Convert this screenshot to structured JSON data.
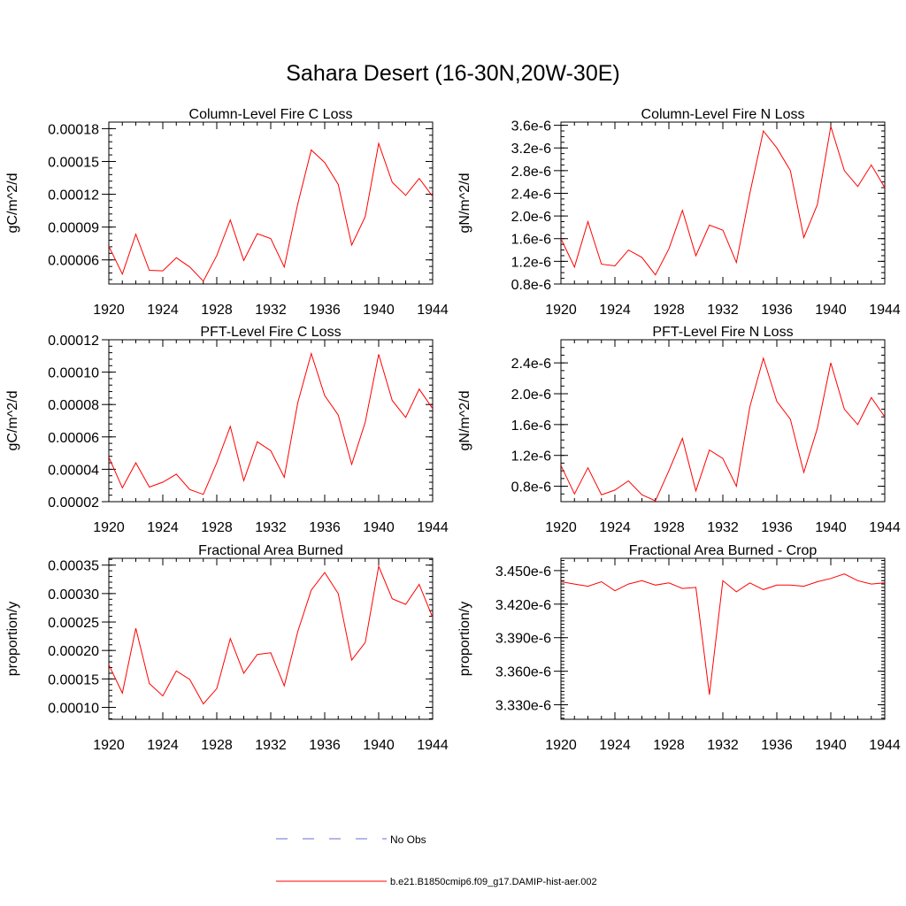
{
  "title": "Sahara Desert (16-30N,20W-30E)",
  "colors": {
    "model": "#ff0000",
    "obs": "#6b6bd6",
    "axis": "#000000"
  },
  "legend": {
    "obs_label": "No Obs",
    "model_label": "b.e21.B1850cmip6.f09_g17.DAMIP-hist-aer.002"
  },
  "chart_data": [
    {
      "type": "line",
      "title": "Column-Level Fire C Loss",
      "ylabel": "gC/m^2/d",
      "xlim": [
        1920,
        1944
      ],
      "ylim": [
        3.794e-05,
        0.000186
      ],
      "x_ticks": [
        1920,
        1924,
        1928,
        1932,
        1936,
        1940,
        1944
      ],
      "y_ticks": [
        6e-05,
        9e-05,
        0.00012,
        0.00015,
        0.00018
      ],
      "y_tick_labels": [
        "0.00006",
        "0.00009",
        "0.00012",
        "0.00015",
        "0.00018"
      ],
      "y_minor_step": 6e-06,
      "series": [
        {
          "x": [
            1920,
            1921,
            1922,
            1923,
            1924,
            1925,
            1926,
            1927,
            1928,
            1929,
            1930,
            1931,
            1932,
            1933,
            1934,
            1935,
            1936,
            1937,
            1938,
            1939,
            1940,
            1941,
            1942,
            1943,
            1944
          ],
          "values": [
            7.25e-05,
            4.7e-05,
            8.35e-05,
            5.05e-05,
            5e-05,
            6.2e-05,
            5.35e-05,
            4.05e-05,
            6.4e-05,
            9.65e-05,
            5.95e-05,
            8.4e-05,
            7.95e-05,
            5.35e-05,
            0.000111,
            0.0001605,
            0.000149,
            0.000129,
            7.35e-05,
            9.95e-05,
            0.0001665,
            0.000131,
            0.000119,
            0.0001345,
            0.000118
          ]
        }
      ]
    },
    {
      "type": "line",
      "title": "Column-Level Fire N Loss",
      "ylabel": "gN/m^2/d",
      "xlim": [
        1920,
        1944
      ],
      "ylim": [
        8e-07,
        3.656e-06
      ],
      "x_ticks": [
        1920,
        1924,
        1928,
        1932,
        1936,
        1940,
        1944
      ],
      "y_ticks": [
        8e-07,
        1.2e-06,
        1.6e-06,
        2e-06,
        2.4e-06,
        2.8e-06,
        3.2e-06,
        3.6e-06
      ],
      "y_tick_labels": [
        "0.8e-6",
        "1.2e-6",
        "1.6e-6",
        "2.0e-6",
        "2.4e-6",
        "2.8e-6",
        "3.2e-6",
        "3.6e-6"
      ],
      "y_minor_step": 1e-07,
      "series": [
        {
          "x": [
            1920,
            1921,
            1922,
            1923,
            1924,
            1925,
            1926,
            1927,
            1928,
            1929,
            1930,
            1931,
            1932,
            1933,
            1934,
            1935,
            1936,
            1937,
            1938,
            1939,
            1940,
            1941,
            1942,
            1943,
            1944
          ],
          "values": [
            1.6e-06,
            1.1e-06,
            1.9e-06,
            1.15e-06,
            1.12e-06,
            1.4e-06,
            1.27e-06,
            9.6e-07,
            1.42e-06,
            2.1e-06,
            1.3e-06,
            1.84e-06,
            1.75e-06,
            1.18e-06,
            2.4e-06,
            3.5e-06,
            3.2e-06,
            2.8e-06,
            1.62e-06,
            2.2e-06,
            3.58e-06,
            2.8e-06,
            2.52e-06,
            2.9e-06,
            2.5e-06
          ]
        }
      ]
    },
    {
      "type": "line",
      "title": "PFT-Level Fire C Loss",
      "ylabel": "gC/m^2/d",
      "xlim": [
        1920,
        1944
      ],
      "ylim": [
        2e-05,
        0.00012
      ],
      "x_ticks": [
        1920,
        1924,
        1928,
        1932,
        1936,
        1940,
        1944
      ],
      "y_ticks": [
        2e-05,
        4e-05,
        6e-05,
        8e-05,
        0.0001,
        0.00012
      ],
      "y_tick_labels": [
        "0.00002",
        "0.00004",
        "0.00006",
        "0.00008",
        "0.00010",
        "0.00012"
      ],
      "y_minor_step": 4e-06,
      "series": [
        {
          "x": [
            1920,
            1921,
            1922,
            1923,
            1924,
            1925,
            1926,
            1927,
            1928,
            1929,
            1930,
            1931,
            1932,
            1933,
            1934,
            1935,
            1936,
            1937,
            1938,
            1939,
            1940,
            1941,
            1942,
            1943,
            1944
          ],
          "values": [
            4.75e-05,
            2.85e-05,
            4.4e-05,
            2.9e-05,
            3.2e-05,
            3.7e-05,
            2.75e-05,
            2.45e-05,
            4.4e-05,
            6.65e-05,
            3.3e-05,
            5.7e-05,
            5.15e-05,
            3.5e-05,
            8.1e-05,
            0.0001115,
            8.55e-05,
            7.35e-05,
            4.3e-05,
            6.9e-05,
            0.000111,
            8.25e-05,
            7.2e-05,
            8.95e-05,
            7.75e-05
          ]
        }
      ]
    },
    {
      "type": "line",
      "title": "PFT-Level Fire N Loss",
      "ylabel": "gN/m^2/d",
      "xlim": [
        1920,
        1944
      ],
      "ylim": [
        6e-07,
        2.7e-06
      ],
      "x_ticks": [
        1920,
        1924,
        1928,
        1932,
        1936,
        1940,
        1944
      ],
      "y_ticks": [
        8e-07,
        1.2e-06,
        1.6e-06,
        2e-06,
        2.4e-06
      ],
      "y_tick_labels": [
        "0.8e-6",
        "1.2e-6",
        "1.6e-6",
        "2.0e-6",
        "2.4e-6"
      ],
      "y_minor_step": 1e-07,
      "series": [
        {
          "x": [
            1920,
            1921,
            1922,
            1923,
            1924,
            1925,
            1926,
            1927,
            1928,
            1929,
            1930,
            1931,
            1932,
            1933,
            1934,
            1935,
            1936,
            1937,
            1938,
            1939,
            1940,
            1941,
            1942,
            1943,
            1944
          ],
          "values": [
            1.07e-06,
            7e-07,
            1.04e-06,
            6.9e-07,
            7.5e-07,
            8.7e-07,
            6.9e-07,
            6.1e-07,
            1e-06,
            1.42e-06,
            7.4e-07,
            1.27e-06,
            1.16e-06,
            8e-07,
            1.83e-06,
            2.46e-06,
            1.9e-06,
            1.67e-06,
            9.8e-07,
            1.55e-06,
            2.4e-06,
            1.8e-06,
            1.6e-06,
            1.95e-06,
            1.7e-06
          ]
        }
      ]
    },
    {
      "type": "line",
      "title": "Fractional Area Burned",
      "ylabel": "proportion/y",
      "xlim": [
        1920,
        1944
      ],
      "ylim": [
        7.9e-05,
        0.000362
      ],
      "x_ticks": [
        1920,
        1924,
        1928,
        1932,
        1936,
        1940,
        1944
      ],
      "y_ticks": [
        0.0001,
        0.00015,
        0.0002,
        0.00025,
        0.0003,
        0.00035
      ],
      "y_tick_labels": [
        "0.00010",
        "0.00015",
        "0.00020",
        "0.00025",
        "0.00030",
        "0.00035"
      ],
      "y_minor_step": 1e-05,
      "series": [
        {
          "x": [
            1920,
            1921,
            1922,
            1923,
            1924,
            1925,
            1926,
            1927,
            1928,
            1929,
            1930,
            1931,
            1932,
            1933,
            1934,
            1935,
            1936,
            1937,
            1938,
            1939,
            1940,
            1941,
            1942,
            1943,
            1944
          ],
          "values": [
            0.000175,
            0.000125,
            0.000239,
            0.000142,
            0.00012,
            0.000164,
            0.000149,
            0.000106,
            0.000133,
            0.000221,
            0.00016,
            0.000193,
            0.000196,
            0.000138,
            0.000233,
            0.000306,
            0.000337,
            0.0003,
            0.000183,
            0.000214,
            0.000348,
            0.000291,
            0.000281,
            0.000316,
            0.000258
          ]
        }
      ]
    },
    {
      "type": "line",
      "title": "Fractional Area Burned - Crop",
      "ylabel": "proportion/y",
      "xlim": [
        1920,
        1944
      ],
      "ylim": [
        3.317e-06,
        3.461e-06
      ],
      "x_ticks": [
        1920,
        1924,
        1928,
        1932,
        1936,
        1940,
        1944
      ],
      "y_ticks": [
        3.33e-06,
        3.36e-06,
        3.39e-06,
        3.42e-06,
        3.45e-06
      ],
      "y_tick_labels": [
        "3.330e-6",
        "3.360e-6",
        "3.390e-6",
        "3.420e-6",
        "3.450e-6"
      ],
      "y_minor_step": 3e-09,
      "series": [
        {
          "x": [
            1920,
            1921,
            1922,
            1923,
            1924,
            1925,
            1926,
            1927,
            1928,
            1929,
            1930,
            1931,
            1932,
            1933,
            1934,
            1935,
            1936,
            1937,
            1938,
            1939,
            1940,
            1941,
            1942,
            1943,
            1944
          ],
          "values": [
            3.44e-06,
            3.438e-06,
            3.436e-06,
            3.44e-06,
            3.432e-06,
            3.438e-06,
            3.441e-06,
            3.437e-06,
            3.439e-06,
            3.434e-06,
            3.435e-06,
            3.339e-06,
            3.441e-06,
            3.431e-06,
            3.439e-06,
            3.433e-06,
            3.437e-06,
            3.437e-06,
            3.436e-06,
            3.44e-06,
            3.443e-06,
            3.447e-06,
            3.441e-06,
            3.438e-06,
            3.439e-06
          ]
        }
      ]
    }
  ]
}
